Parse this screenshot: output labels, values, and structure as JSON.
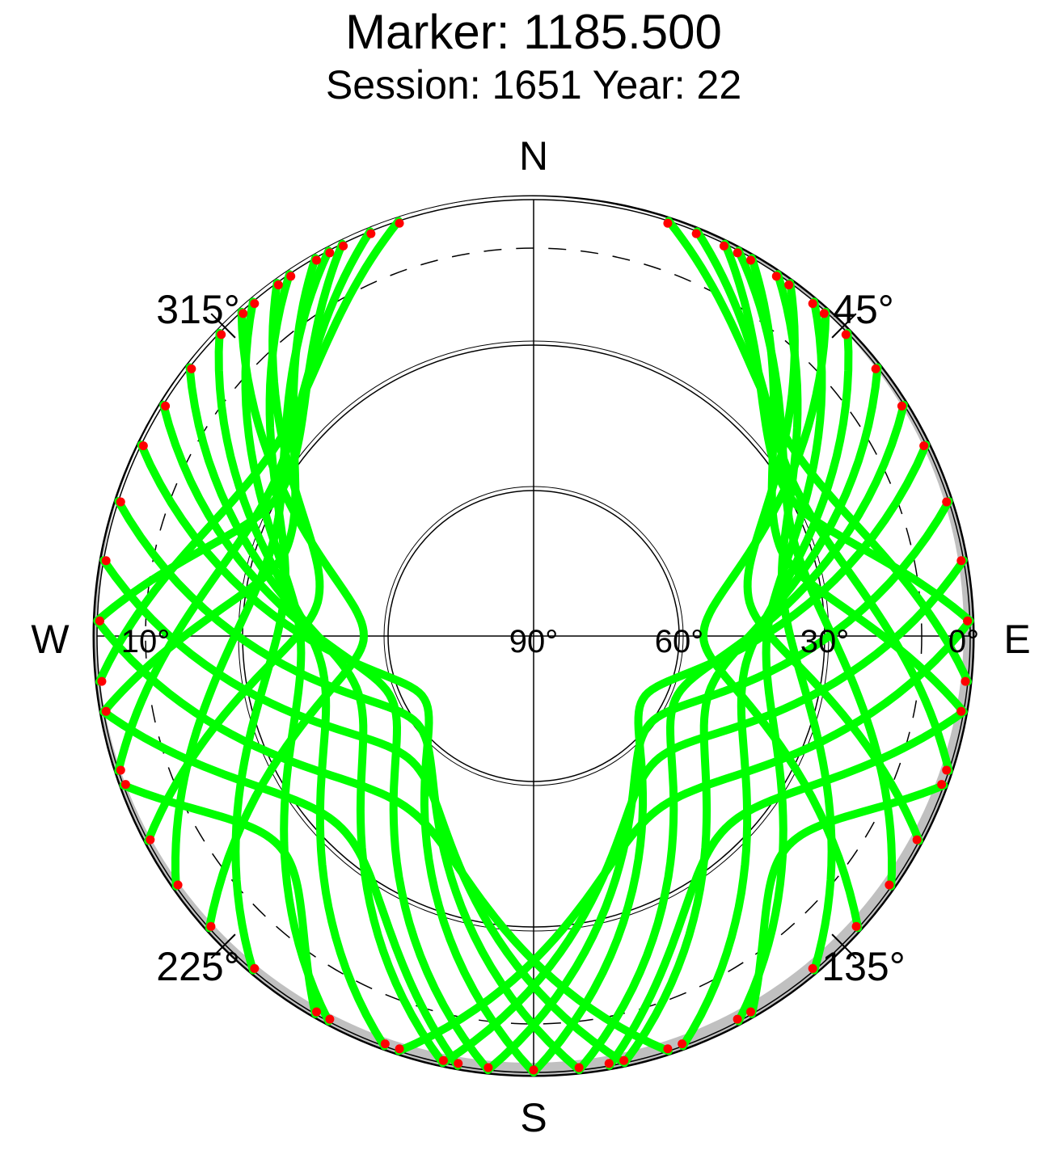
{
  "chart_data": {
    "type": "scatter",
    "projection": "polar-skyplot",
    "title": "Marker: 1185.500",
    "subtitle": "Session: 1651 Year: 22",
    "directions": {
      "north": "N",
      "east": "E",
      "south": "S",
      "west": "W"
    },
    "azimuth_labels": [
      {
        "az": 45,
        "text": "45°"
      },
      {
        "az": 135,
        "text": "135°"
      },
      {
        "az": 225,
        "text": "225°"
      },
      {
        "az": 315,
        "text": "315°"
      }
    ],
    "elevation_labels": [
      {
        "elev": 90,
        "text": "90°"
      },
      {
        "elev": 60,
        "text": "60°"
      },
      {
        "elev": 30,
        "text": "30°"
      },
      {
        "elev": 0,
        "text": "0°"
      },
      {
        "elev": 10,
        "text": "10°",
        "side": "west"
      }
    ],
    "elevation_circles": [
      60,
      30,
      0
    ],
    "cutoff_elevation_dashed": 10,
    "radial_axis": {
      "min_elev": 0,
      "max_elev": 90,
      "scale": "linear"
    },
    "colors": {
      "track": "#00ff00",
      "low_elevation": "#ff0000",
      "mask": "#c0c0c0",
      "grid": "#000000"
    },
    "legend": "none",
    "tracks": [
      {
        "az_start": 18,
        "az_end": 96,
        "elev_max": 24,
        "az_peak": 55
      },
      {
        "az_start": 22,
        "az_end": 108,
        "elev_max": 28,
        "az_peak": 62
      },
      {
        "az_start": 28,
        "az_end": 125,
        "elev_max": 33,
        "az_peak": 72
      },
      {
        "az_start": 34,
        "az_end": 140,
        "elev_max": 38,
        "az_peak": 82
      },
      {
        "az_start": 40,
        "az_end": 152,
        "elev_max": 42,
        "az_peak": 92
      },
      {
        "az_start": 46,
        "az_end": 160,
        "elev_max": 46,
        "az_peak": 100
      },
      {
        "az_start": 52,
        "az_end": 168,
        "elev_max": 52,
        "az_peak": 108
      },
      {
        "az_start": 58,
        "az_end": 174,
        "elev_max": 58,
        "az_peak": 114
      },
      {
        "az_start": 64,
        "az_end": 180,
        "elev_max": 64,
        "az_peak": 120
      },
      {
        "az_start": 72,
        "az_end": 186,
        "elev_max": 60,
        "az_peak": 128
      },
      {
        "az_start": 80,
        "az_end": 192,
        "elev_max": 54,
        "az_peak": 136
      },
      {
        "az_start": 88,
        "az_end": 198,
        "elev_max": 46,
        "az_peak": 144
      },
      {
        "az_start": 30,
        "az_end": 100,
        "elev_max": 36,
        "az_peak": 70
      },
      {
        "az_start": 36,
        "az_end": 118,
        "elev_max": 45,
        "az_peak": 80
      },
      {
        "az_start": 42,
        "az_end": 132,
        "elev_max": 55,
        "az_peak": 90
      },
      {
        "az_start": 26,
        "az_end": 88,
        "elev_max": 30,
        "az_peak": 60
      },
      {
        "az_start": 342,
        "az_end": 264,
        "elev_max": 24,
        "az_peak": 305
      },
      {
        "az_start": 338,
        "az_end": 252,
        "elev_max": 28,
        "az_peak": 298
      },
      {
        "az_start": 332,
        "az_end": 235,
        "elev_max": 33,
        "az_peak": 288
      },
      {
        "az_start": 326,
        "az_end": 220,
        "elev_max": 38,
        "az_peak": 278
      },
      {
        "az_start": 320,
        "az_end": 208,
        "elev_max": 42,
        "az_peak": 268
      },
      {
        "az_start": 314,
        "az_end": 200,
        "elev_max": 46,
        "az_peak": 260
      },
      {
        "az_start": 308,
        "az_end": 192,
        "elev_max": 52,
        "az_peak": 252
      },
      {
        "az_start": 302,
        "az_end": 186,
        "elev_max": 58,
        "az_peak": 246
      },
      {
        "az_start": 296,
        "az_end": 180,
        "elev_max": 64,
        "az_peak": 240
      },
      {
        "az_start": 288,
        "az_end": 174,
        "elev_max": 60,
        "az_peak": 232
      },
      {
        "az_start": 280,
        "az_end": 168,
        "elev_max": 54,
        "az_peak": 224
      },
      {
        "az_start": 272,
        "az_end": 162,
        "elev_max": 46,
        "az_peak": 216
      },
      {
        "az_start": 330,
        "az_end": 260,
        "elev_max": 36,
        "az_peak": 290
      },
      {
        "az_start": 324,
        "az_end": 242,
        "elev_max": 45,
        "az_peak": 280
      },
      {
        "az_start": 318,
        "az_end": 228,
        "elev_max": 55,
        "az_peak": 270
      },
      {
        "az_start": 334,
        "az_end": 272,
        "elev_max": 30,
        "az_peak": 300
      },
      {
        "az_start": 110,
        "az_end": 150,
        "elev_max": 22,
        "az_peak": 130
      },
      {
        "az_start": 250,
        "az_end": 210,
        "elev_max": 22,
        "az_peak": 230
      },
      {
        "az_start": 100,
        "az_end": 170,
        "elev_max": 34,
        "az_peak": 135
      },
      {
        "az_start": 260,
        "az_end": 190,
        "elev_max": 34,
        "az_peak": 225
      }
    ]
  }
}
